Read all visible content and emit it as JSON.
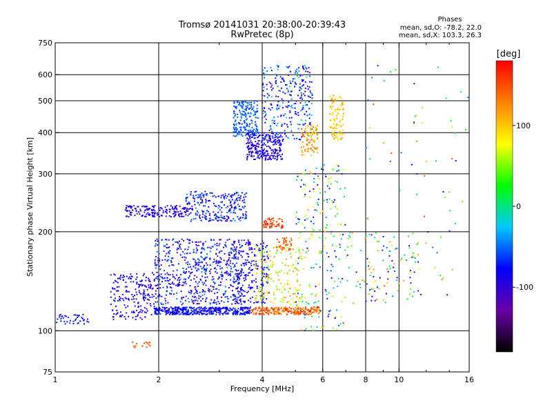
{
  "chart_data": {
    "type": "scatter",
    "title": "Tromsø 20141031 20:38:00-20:39:43",
    "subtitle": "RwPretec (8p)",
    "xlabel": "Frequency [MHz]",
    "ylabel": "Stationary phase Virtual Height [km]",
    "x_scale": "log",
    "y_scale": "log",
    "xlim": [
      1,
      16
    ],
    "ylim": [
      75,
      750
    ],
    "x_ticks": [
      1,
      2,
      4,
      6,
      8,
      10,
      16
    ],
    "x_tick_labels": [
      "1",
      "2",
      "4",
      "6",
      "8",
      "10",
      "16"
    ],
    "x_gridlines": [
      2,
      4,
      6,
      8,
      10
    ],
    "y_ticks": [
      75,
      100,
      200,
      300,
      400,
      500,
      600,
      750
    ],
    "y_tick_labels": [
      "75",
      "100",
      "200",
      "300",
      "400",
      "500",
      "600",
      "750"
    ],
    "y_gridlines": [
      100,
      200,
      300,
      400,
      500,
      600
    ],
    "grid": true,
    "info": {
      "title": "Phases",
      "line1": "mean, sd,O: -78.2, 22.0",
      "line2": "mean, sd,X: 103.3, 26.3"
    },
    "colorbar": {
      "label": "[deg]",
      "range": [
        -180,
        180
      ],
      "ticks": [
        100,
        0,
        -100
      ],
      "tick_labels": [
        "100",
        "0",
        "-100"
      ],
      "colormap": [
        "#000000",
        "#6a00a8",
        "#0000ff",
        "#00c8ff",
        "#00ff00",
        "#ffff00",
        "#ff8000",
        "#ff0000"
      ]
    },
    "clusters": [
      {
        "x": [
          1.0,
          1.25
        ],
        "y": [
          105,
          112
        ],
        "phase": [
          -100,
          -60
        ],
        "n": 40
      },
      {
        "x": [
          1.45,
          1.95
        ],
        "y": [
          108,
          150
        ],
        "phase": [
          -110,
          -70
        ],
        "n": 200
      },
      {
        "x": [
          1.95,
          3.7
        ],
        "y": [
          112,
          118
        ],
        "phase": [
          -100,
          -60
        ],
        "n": 420
      },
      {
        "x": [
          1.95,
          3.5
        ],
        "y": [
          120,
          190
        ],
        "phase": [
          -120,
          -40
        ],
        "n": 600
      },
      {
        "x": [
          1.6,
          2.4
        ],
        "y": [
          222,
          240
        ],
        "phase": [
          -110,
          -80
        ],
        "n": 160
      },
      {
        "x": [
          2.4,
          3.6
        ],
        "y": [
          215,
          265
        ],
        "phase": [
          -110,
          -40
        ],
        "n": 260
      },
      {
        "x": [
          3.3,
          4.2
        ],
        "y": [
          120,
          190
        ],
        "phase": [
          -110,
          -60
        ],
        "n": 220
      },
      {
        "x": [
          3.7,
          5.9
        ],
        "y": [
          112,
          118
        ],
        "phase": [
          110,
          175
        ],
        "n": 240
      },
      {
        "x": [
          3.8,
          5.2
        ],
        "y": [
          120,
          180
        ],
        "phase": [
          40,
          130
        ],
        "n": 160
      },
      {
        "x": [
          4.0,
          4.6
        ],
        "y": [
          205,
          220
        ],
        "phase": [
          140,
          170
        ],
        "n": 60
      },
      {
        "x": [
          4.4,
          4.9
        ],
        "y": [
          175,
          192
        ],
        "phase": [
          130,
          160
        ],
        "n": 40
      },
      {
        "x": [
          3.3,
          3.9
        ],
        "y": [
          390,
          500
        ],
        "phase": [
          -70,
          -40
        ],
        "n": 200
      },
      {
        "x": [
          3.6,
          4.6
        ],
        "y": [
          330,
          400
        ],
        "phase": [
          -110,
          -70
        ],
        "n": 260
      },
      {
        "x": [
          4.0,
          5.6
        ],
        "y": [
          380,
          640
        ],
        "phase": [
          -120,
          -20
        ],
        "n": 280
      },
      {
        "x": [
          5.2,
          5.8
        ],
        "y": [
          340,
          420
        ],
        "phase": [
          90,
          140
        ],
        "n": 90
      },
      {
        "x": [
          6.3,
          6.9
        ],
        "y": [
          380,
          520
        ],
        "phase": [
          80,
          120
        ],
        "n": 100
      },
      {
        "x": [
          5.0,
          7.0
        ],
        "y": [
          100,
          320
        ],
        "phase": [
          -100,
          120
        ],
        "n": 220
      },
      {
        "x": [
          7.0,
          11.5
        ],
        "y": [
          120,
          200
        ],
        "phase": [
          -120,
          140
        ],
        "n": 110
      },
      {
        "x": [
          8.0,
          16.0
        ],
        "y": [
          120,
          640
        ],
        "phase": [
          -110,
          170
        ],
        "n": 70
      },
      {
        "x": [
          1.65,
          1.9
        ],
        "y": [
          88,
          93
        ],
        "phase": [
          140,
          160
        ],
        "n": 14
      }
    ]
  }
}
